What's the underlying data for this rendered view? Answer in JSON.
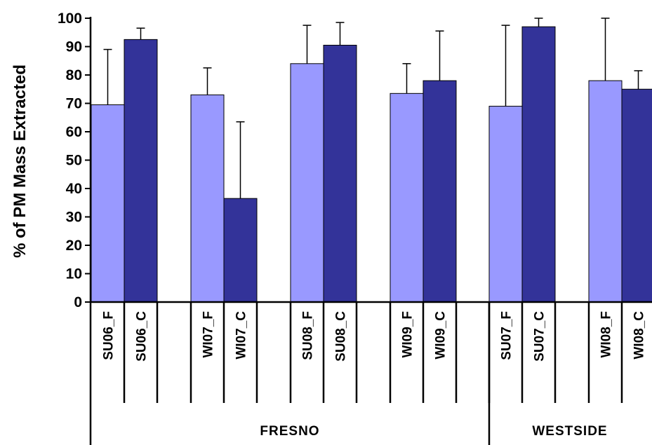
{
  "chart_data": {
    "type": "bar",
    "title": "",
    "xlabel": "",
    "ylabel": "% of PM Mass Extracted",
    "ylim": [
      0,
      100
    ],
    "yticks": [
      0,
      10,
      20,
      30,
      40,
      50,
      60,
      70,
      80,
      90,
      100
    ],
    "grid": false,
    "legend": "none",
    "colors": {
      "F": "#9999ff",
      "C": "#333399",
      "axis": "#000000"
    },
    "categories": [
      "SU06_F",
      "SU06_C",
      "WI07_F",
      "WI07_C",
      "SU08_F",
      "SU08_C",
      "WI09_F",
      "WI09_C",
      "SU07_F",
      "SU07_C",
      "WI08_F",
      "WI08_C"
    ],
    "values": [
      69.5,
      92.5,
      73,
      36.5,
      84,
      90.5,
      73.5,
      78,
      69,
      97,
      78,
      75
    ],
    "error_upper": [
      89,
      96.5,
      82.5,
      63.5,
      97.5,
      98.5,
      84,
      95.5,
      97.5,
      100,
      100,
      81.5
    ],
    "bar_types": [
      "F",
      "C",
      "F",
      "C",
      "F",
      "C",
      "F",
      "C",
      "F",
      "C",
      "F",
      "C"
    ],
    "groups": [
      {
        "label": "FRESNO",
        "span": [
          0,
          7
        ]
      },
      {
        "label": "WESTSIDE",
        "span": [
          8,
          11
        ]
      }
    ]
  }
}
